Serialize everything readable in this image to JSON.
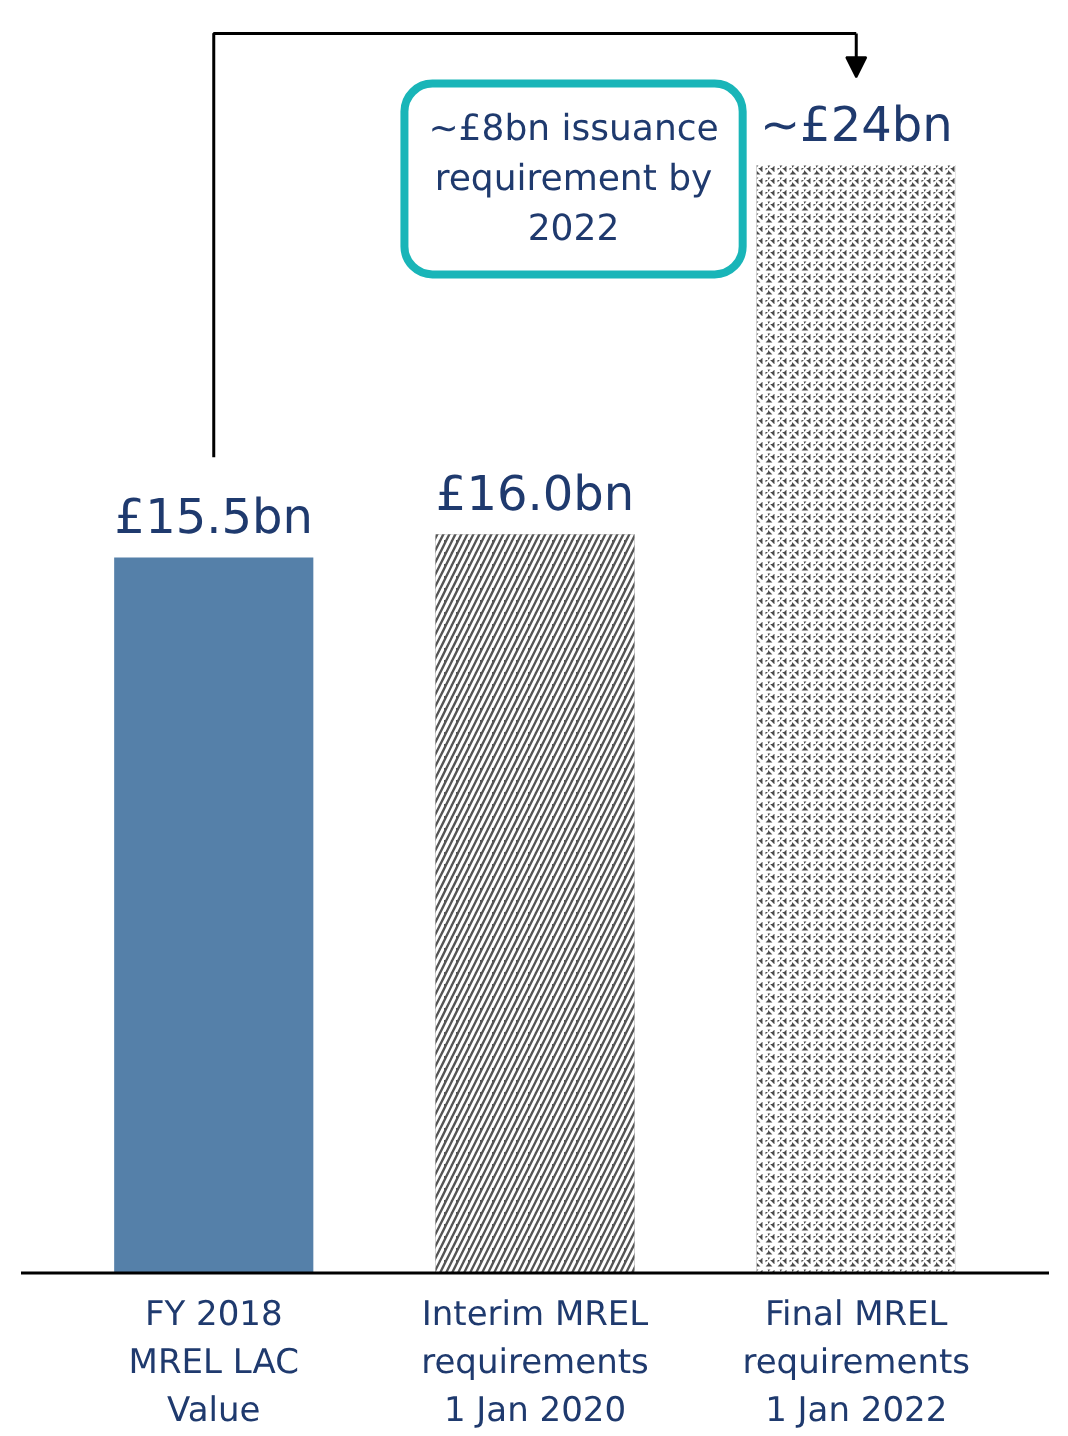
{
  "chart_data": {
    "type": "bar",
    "categories": [
      "FY 2018\nMREL LAC\nValue",
      "Interim MREL\nrequirements\n1 Jan 2020",
      "Final MREL\nrequirements\n1 Jan 2022"
    ],
    "values": [
      15.5,
      16.0,
      24
    ],
    "colors": [
      "#5580a9",
      "#555555",
      "#4a4a4a"
    ],
    "value_labels": [
      "£15.5bn",
      "£16.0bn",
      "~£24bn"
    ],
    "tick_labels": "x",
    "grid": false,
    "annotations": [
      "~£8bn issuance\nrequirement by\n2022"
    ]
  }
}
